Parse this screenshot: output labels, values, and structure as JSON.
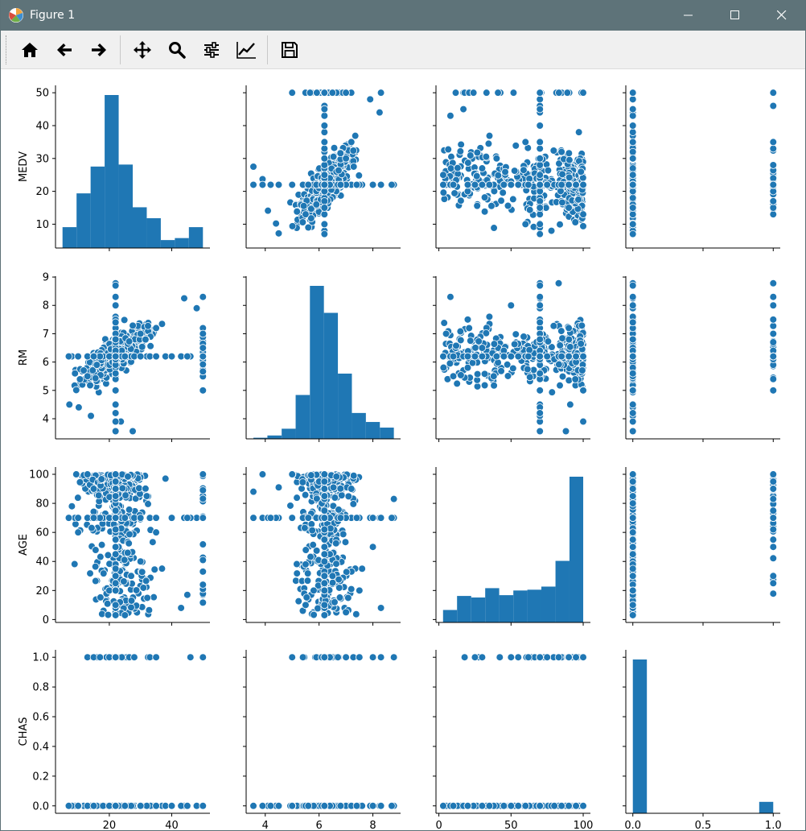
{
  "window": {
    "title": "Figure 1"
  },
  "toolbar": {
    "buttons": [
      {
        "name": "home-button",
        "icon": "home-icon"
      },
      {
        "name": "back-button",
        "icon": "arrow-left-icon"
      },
      {
        "name": "forward-button",
        "icon": "arrow-right-icon"
      },
      {
        "name": "pan-button",
        "icon": "move-icon"
      },
      {
        "name": "zoom-button",
        "icon": "magnifier-icon"
      },
      {
        "name": "subplots-button",
        "icon": "sliders-icon"
      },
      {
        "name": "edit-axis-button",
        "icon": "line-chart-icon"
      },
      {
        "name": "save-button",
        "icon": "floppy-disk-icon"
      }
    ]
  },
  "colors": {
    "marker": "#1f77b4",
    "titlebar": "#5e7379"
  },
  "chart_data": {
    "type": "pairplot",
    "variables": [
      "MEDV",
      "RM",
      "AGE",
      "CHAS"
    ],
    "ranges": {
      "MEDV": [
        2.75,
        52.25
      ],
      "RM": [
        3.29,
        9.03
      ],
      "AGE": [
        -2.0,
        105.0
      ],
      "CHAS": [
        -0.05,
        1.05
      ]
    },
    "ticks": {
      "MEDV": [
        10,
        20,
        30,
        40,
        50
      ],
      "RM": [
        4,
        5,
        6,
        7,
        8,
        9
      ],
      "AGE": [
        0,
        20,
        40,
        60,
        80,
        100
      ],
      "CHAS": [
        0.0,
        0.2,
        0.4,
        0.6,
        0.8,
        1.0
      ]
    },
    "xticks": {
      "MEDV": [
        20,
        40
      ],
      "RM": [
        4,
        6,
        8
      ],
      "AGE": [
        0,
        50,
        100
      ],
      "CHAS": [
        0.0,
        0.5,
        1.0
      ]
    },
    "tick_labels": {
      "MEDV": [
        "10",
        "20",
        "30",
        "40",
        "50"
      ],
      "RM": [
        "4",
        "5",
        "6",
        "7",
        "8",
        "9"
      ],
      "AGE": [
        "0",
        "20",
        "40",
        "60",
        "80",
        "100"
      ],
      "CHAS": [
        "0.0",
        "0.2",
        "0.4",
        "0.6",
        "0.8",
        "1.0"
      ]
    },
    "xtick_labels": {
      "MEDV": [
        "20",
        "40"
      ],
      "RM": [
        "4",
        "6",
        "8"
      ],
      "AGE": [
        "0",
        "50",
        "100"
      ],
      "CHAS": [
        "0.0",
        "0.5",
        "1.0"
      ]
    },
    "histograms": {
      "MEDV": {
        "edges": [
          5,
          9.5,
          14,
          18.5,
          23,
          27.5,
          32,
          36.5,
          41,
          45.5,
          50
        ],
        "counts": [
          21,
          55,
          82,
          154,
          84,
          41,
          30,
          8,
          10,
          21
        ]
      },
      "RM": {
        "edges": [
          3.56,
          4.08,
          4.61,
          5.13,
          5.66,
          6.18,
          6.7,
          7.22,
          7.74,
          8.26,
          8.78
        ],
        "counts": [
          1,
          3,
          9,
          39,
          136,
          112,
          58,
          23,
          15,
          10
        ]
      },
      "AGE": {
        "edges": [
          2.9,
          12.6,
          22.4,
          32.1,
          41.8,
          51.6,
          61.3,
          71.0,
          80.8,
          90.5,
          100
        ],
        "counts": [
          16,
          34,
          32,
          44,
          35,
          41,
          42,
          46,
          79,
          187
        ]
      },
      "CHAS": {
        "edges": [
          0,
          0.1,
          0.2,
          0.3,
          0.4,
          0.5,
          0.6,
          0.7,
          0.8,
          0.9,
          1.0
        ],
        "counts": [
          471,
          0,
          0,
          0,
          0,
          0,
          0,
          0,
          0,
          35
        ]
      }
    },
    "sample_points": {
      "MEDV_RM": [
        [
          50,
          6.2
        ],
        [
          50,
          7.0
        ],
        [
          50,
          8.3
        ],
        [
          50,
          5.0
        ],
        [
          22,
          8.78
        ],
        [
          23.7,
          3.9
        ],
        [
          27.5,
          3.56
        ],
        [
          7.2,
          4.5
        ],
        [
          10.2,
          4.4
        ],
        [
          14.1,
          4.1
        ],
        [
          44,
          8.25
        ],
        [
          48,
          7.9
        ],
        [
          18,
          6.2
        ],
        [
          21,
          6.0
        ],
        [
          24,
          6.4
        ],
        [
          30,
          7.0
        ],
        [
          35,
          7.2
        ],
        [
          13,
          5.5
        ],
        [
          16,
          5.9
        ],
        [
          9,
          5.6
        ]
      ],
      "MEDV_AGE": [
        [
          50,
          100
        ],
        [
          50,
          33
        ],
        [
          50,
          24
        ],
        [
          50,
          89
        ],
        [
          13,
          100
        ],
        [
          20,
          20
        ],
        [
          22,
          8
        ],
        [
          25,
          3
        ],
        [
          30,
          40
        ],
        [
          35,
          60
        ],
        [
          45,
          17
        ],
        [
          43,
          8
        ],
        [
          8,
          78
        ],
        [
          10,
          60
        ],
        [
          15,
          90
        ],
        [
          18,
          70
        ],
        [
          23,
          50
        ],
        [
          27,
          30
        ],
        [
          32,
          85
        ],
        [
          38,
          97
        ]
      ],
      "MEDV_CHAS": [
        [
          13,
          1
        ],
        [
          15,
          1
        ],
        [
          17,
          1
        ],
        [
          20,
          1
        ],
        [
          22,
          1
        ],
        [
          24,
          1
        ],
        [
          28,
          1
        ],
        [
          33,
          1
        ],
        [
          35,
          1
        ],
        [
          46,
          1
        ],
        [
          50,
          1
        ],
        [
          7,
          0
        ],
        [
          10,
          0
        ],
        [
          15,
          0
        ],
        [
          20,
          0
        ],
        [
          25,
          0
        ],
        [
          30,
          0
        ],
        [
          40,
          0
        ],
        [
          45,
          0
        ],
        [
          50,
          0
        ]
      ],
      "RM_AGE": [
        [
          3.56,
          88
        ],
        [
          3.9,
          100
        ],
        [
          4.5,
          91
        ],
        [
          5.0,
          100
        ],
        [
          5.5,
          38
        ],
        [
          5.5,
          10
        ],
        [
          6.0,
          95
        ],
        [
          6.2,
          60
        ],
        [
          6.5,
          30
        ],
        [
          7.0,
          5
        ],
        [
          7.5,
          20
        ],
        [
          8.0,
          50
        ],
        [
          8.3,
          8
        ],
        [
          8.78,
          83
        ],
        [
          6.8,
          70
        ],
        [
          7.2,
          90
        ],
        [
          5.8,
          20
        ],
        [
          6.4,
          45
        ],
        [
          6.1,
          80
        ],
        [
          7.6,
          35
        ]
      ],
      "RM_CHAS": [
        [
          5.0,
          1
        ],
        [
          5.4,
          1
        ],
        [
          5.9,
          1
        ],
        [
          6.1,
          1
        ],
        [
          6.4,
          1
        ],
        [
          6.7,
          1
        ],
        [
          7.0,
          1
        ],
        [
          7.5,
          1
        ],
        [
          8.0,
          1
        ],
        [
          8.3,
          1
        ],
        [
          8.78,
          1
        ],
        [
          3.56,
          0
        ],
        [
          4.2,
          0
        ],
        [
          5.0,
          0
        ],
        [
          5.6,
          0
        ],
        [
          6.2,
          0
        ],
        [
          6.8,
          0
        ],
        [
          7.4,
          0
        ],
        [
          8.0,
          0
        ],
        [
          8.7,
          0
        ]
      ],
      "AGE_CHAS": [
        [
          25,
          1
        ],
        [
          30,
          1
        ],
        [
          50,
          1
        ],
        [
          55,
          1
        ],
        [
          62,
          1
        ],
        [
          75,
          1
        ],
        [
          83,
          1
        ],
        [
          90,
          1
        ],
        [
          95,
          1
        ],
        [
          100,
          1
        ],
        [
          3,
          0
        ],
        [
          10,
          0
        ],
        [
          20,
          0
        ],
        [
          30,
          0
        ],
        [
          45,
          0
        ],
        [
          55,
          0
        ],
        [
          70,
          0
        ],
        [
          85,
          0
        ],
        [
          95,
          0
        ],
        [
          100,
          0
        ]
      ]
    }
  }
}
